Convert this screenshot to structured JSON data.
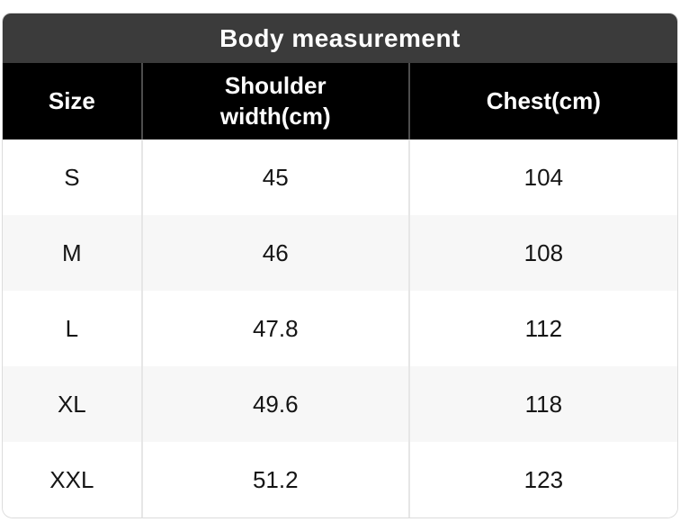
{
  "chart_data": {
    "type": "table",
    "title": "Body measurement",
    "columns": [
      "Size",
      "Shoulder width(cm)",
      "Chest(cm)"
    ],
    "rows": [
      [
        "S",
        "45",
        "104"
      ],
      [
        "M",
        "46",
        "108"
      ],
      [
        "L",
        "47.8",
        "112"
      ],
      [
        "XL",
        "49.6",
        "118"
      ],
      [
        "XXL",
        "51.2",
        "123"
      ]
    ],
    "layout": {
      "title_position": "top-bar",
      "row_striping": "alternating",
      "alignment": "center"
    }
  },
  "colors": {
    "title_bar_bg": "#3b3b3b",
    "header_bg": "#000000",
    "header_text": "#ffffff",
    "row_bg": "#ffffff",
    "row_alt_bg": "#f7f7f7",
    "body_text": "#151515",
    "border": "#dcdcdc",
    "header_divider": "#4d4d4d",
    "body_divider": "#e6e6e6"
  }
}
